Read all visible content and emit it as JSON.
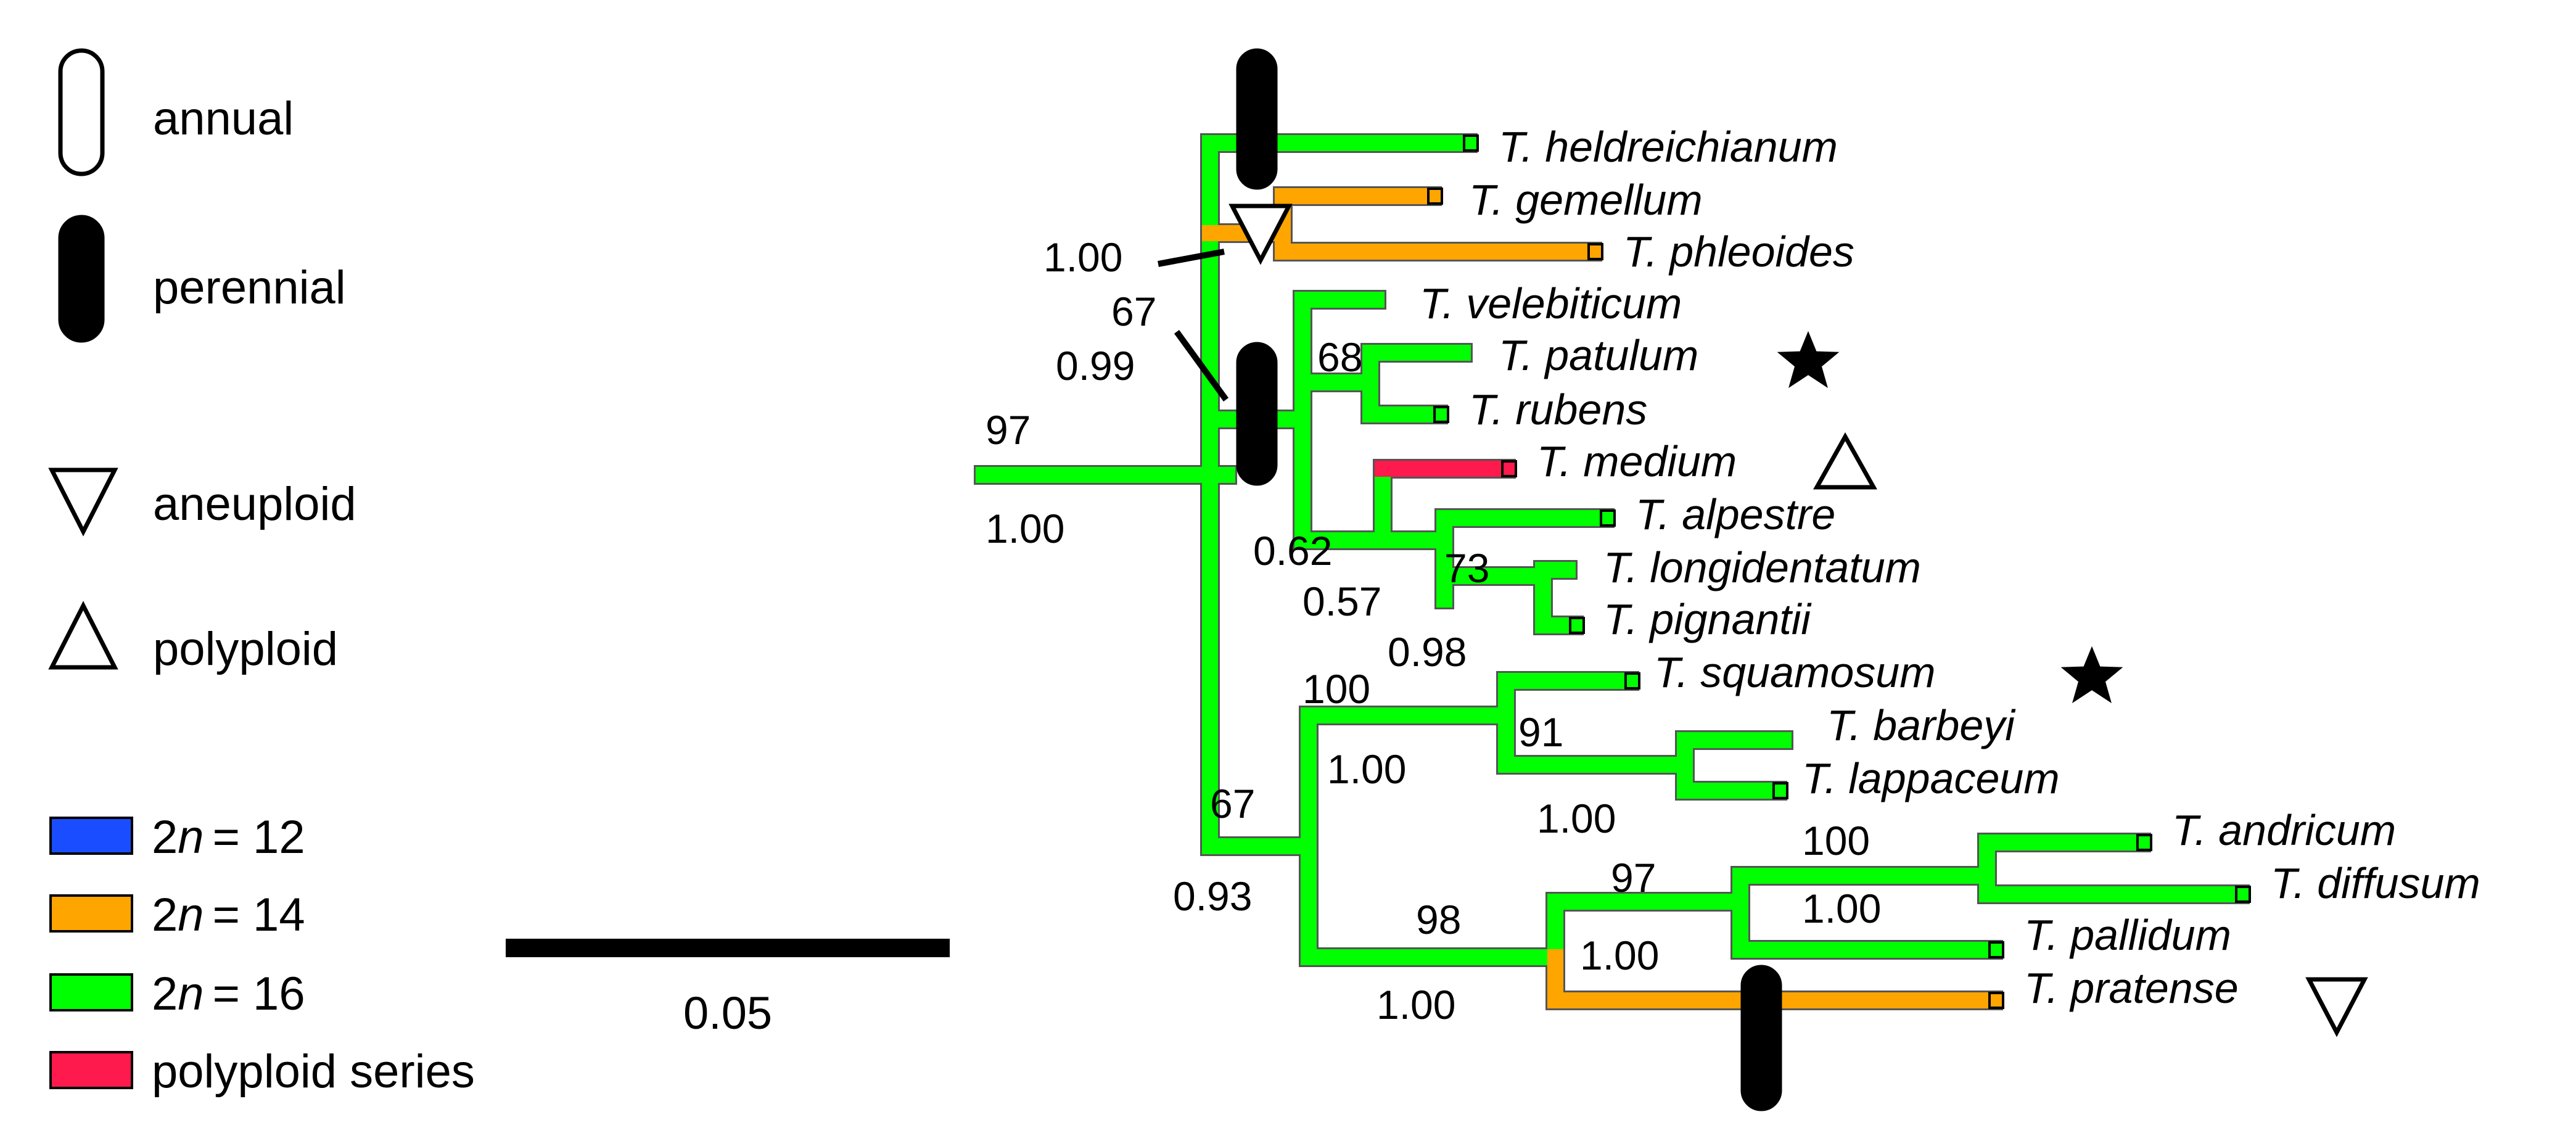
{
  "legend": {
    "life_history": [
      {
        "label": "annual",
        "symbol": "open-capsule"
      },
      {
        "label": "perennial",
        "symbol": "filled-capsule"
      }
    ],
    "ploidy": [
      {
        "label": "aneuploid",
        "symbol": "down-triangle"
      },
      {
        "label": "polyploid",
        "symbol": "up-triangle"
      }
    ],
    "chromosome_prefix": "2",
    "chromosome_var": "n",
    "chromosome": [
      {
        "value": "= 12",
        "color": "#1a4dff"
      },
      {
        "value": "= 14",
        "color": "#ffa500"
      },
      {
        "value": "= 16",
        "color": "#00ff00"
      },
      {
        "value": "polyploid series",
        "color": "#ff1a4d"
      }
    ]
  },
  "scale_bar": {
    "label": "0.05"
  },
  "taxa": [
    "T. heldreichianum",
    "T. gemellum",
    "T. phleoides",
    "T. velebiticum",
    "T. patulum",
    "T. rubens",
    "T. medium",
    "T. alpestre",
    "T. longidentatum",
    "T. pignantii",
    "T. squamosum",
    "T. barbeyi",
    "T. lappaceum",
    "T. andricum",
    "T. diffusum",
    "T. pallidum",
    "T. pratense"
  ],
  "supports": [
    "97",
    "1.00",
    "1.00",
    "67",
    "0.99",
    "68",
    "0.62",
    "73",
    "0.57",
    "0.98",
    "100",
    "1.00",
    "91",
    "1.00",
    "67",
    "0.93",
    "98",
    "1.00",
    "97",
    "1.00",
    "100",
    "1.00"
  ],
  "colors": {
    "green": "#00ff00",
    "orange": "#ffa500",
    "red": "#ff1a4d",
    "outline": "#555555"
  }
}
